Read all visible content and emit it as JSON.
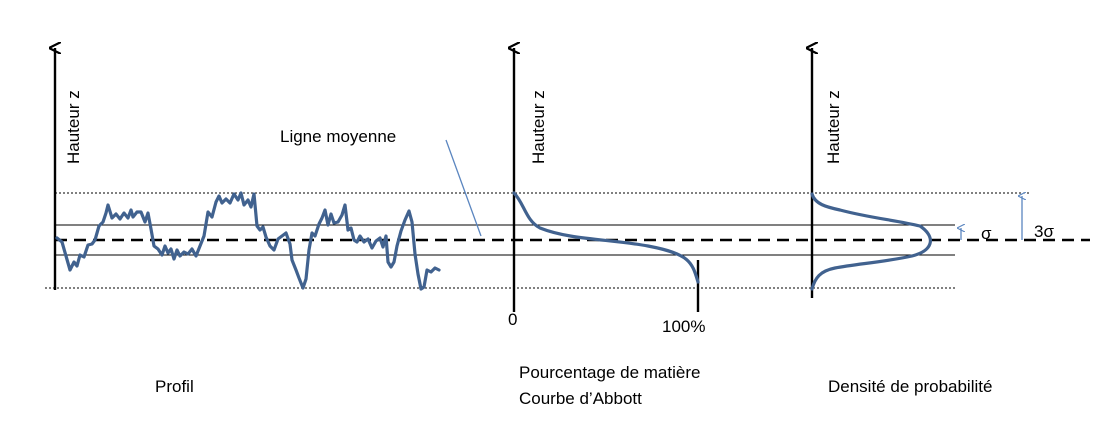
{
  "panels": {
    "profile": {
      "axis_label": "Hauteur z",
      "caption": "Profil"
    },
    "abbott": {
      "axis_label": "Hauteur z",
      "tick_zero": "0",
      "tick_hundred": "100%",
      "caption_line1": "Pourcentage de matière",
      "caption_line2": "Courbe d’Abbott"
    },
    "density": {
      "axis_label": "Hauteur z",
      "caption": "Densité de probabilité"
    }
  },
  "annotations": {
    "mean_line": "Ligne moyenne",
    "sigma": "σ",
    "three_sigma": "3σ"
  },
  "colors": {
    "curve": "#41628f",
    "pointer": "#5b86c0"
  }
}
